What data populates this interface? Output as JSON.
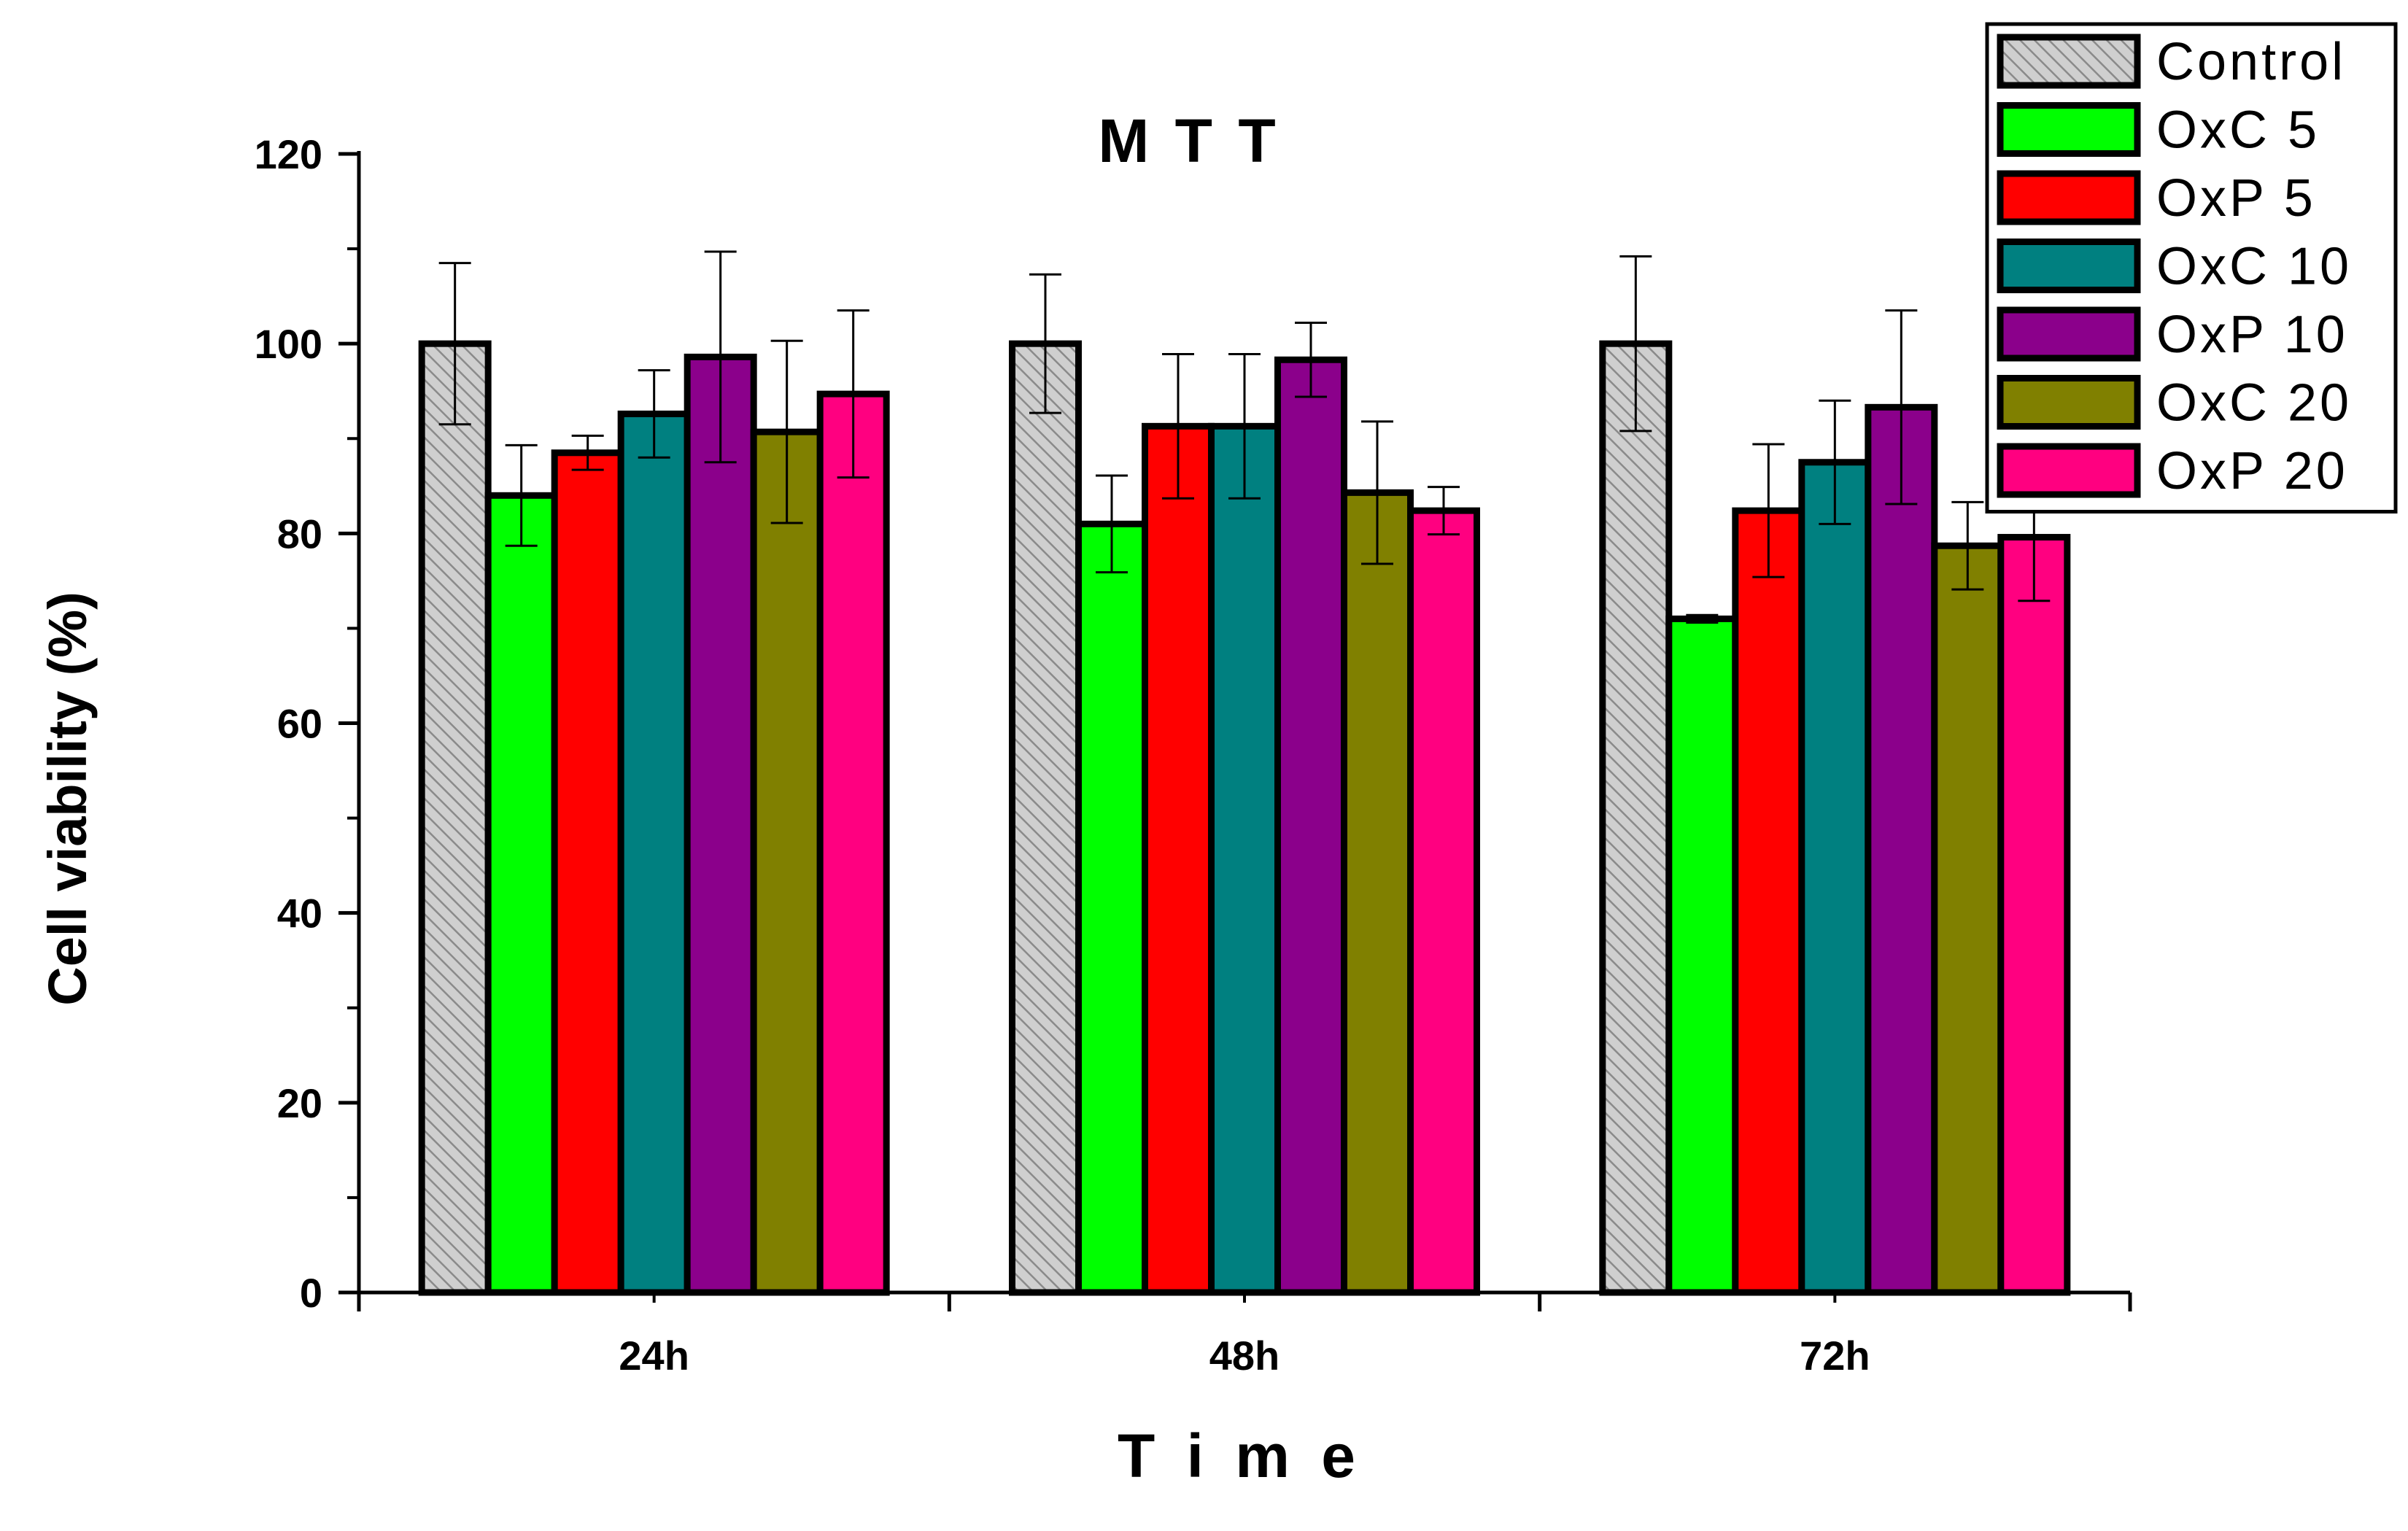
{
  "chart_data": {
    "type": "bar",
    "title": "M T T",
    "xlabel": "T i m e",
    "ylabel": "Cell viability (%)",
    "ylim": [
      0,
      120
    ],
    "yticks": [
      0,
      20,
      40,
      60,
      80,
      100,
      120
    ],
    "categories": [
      "24h",
      "48h",
      "72h"
    ],
    "legend_position": "top-right",
    "series": [
      {
        "name": "Control",
        "color": "#c8c8c8",
        "hatched": true,
        "values": [
          100,
          100,
          100
        ],
        "errors": [
          8.5,
          7.3,
          9.2
        ]
      },
      {
        "name": "OxC 5",
        "color": "#00ff00",
        "values": [
          84,
          81,
          71
        ],
        "errors": [
          5.3,
          5.1,
          0.4
        ]
      },
      {
        "name": "OxP 5",
        "color": "#ff0000",
        "values": [
          88.5,
          91.3,
          82.4
        ],
        "errors": [
          1.8,
          7.6,
          7.0
        ]
      },
      {
        "name": "OxC 10",
        "color": "#008080",
        "values": [
          92.6,
          91.3,
          87.5
        ],
        "errors": [
          4.6,
          7.6,
          6.5
        ]
      },
      {
        "name": "OxP 10",
        "color": "#8b008b",
        "values": [
          98.6,
          98.3,
          93.3
        ],
        "errors": [
          11.1,
          3.9,
          10.2
        ]
      },
      {
        "name": "OxC 20",
        "color": "#808000",
        "values": [
          90.7,
          84.3,
          78.7
        ],
        "errors": [
          9.6,
          7.5,
          4.6
        ]
      },
      {
        "name": "OxP 20",
        "color": "#ff0080",
        "values": [
          94.7,
          82.4,
          79.6
        ],
        "errors": [
          8.8,
          2.5,
          6.7
        ]
      }
    ]
  }
}
